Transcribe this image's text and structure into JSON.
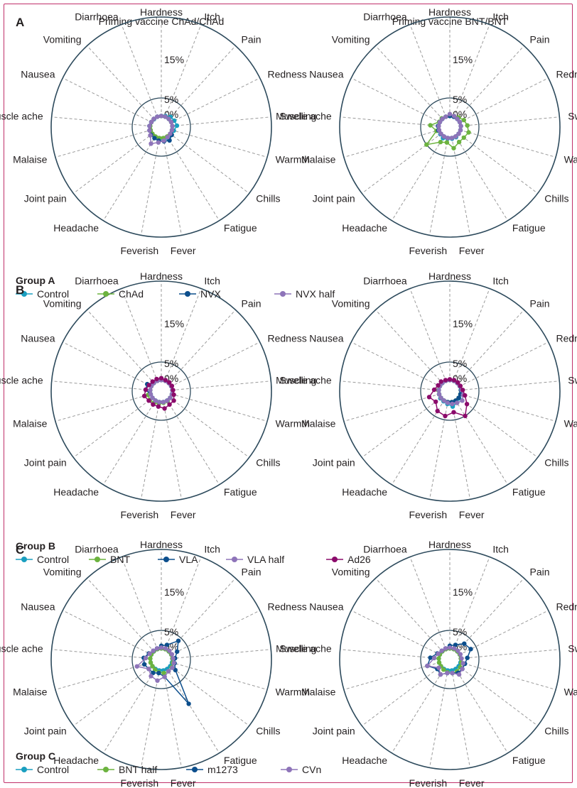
{
  "panels": [
    {
      "letter": "A",
      "group_label": "Group A",
      "legend": [
        {
          "name": "Control",
          "color": "#1a9fc0"
        },
        {
          "name": "ChAd",
          "color": "#6cb33f"
        },
        {
          "name": "NVX",
          "color": "#0c4e8c"
        },
        {
          "name": "NVX half",
          "color": "#8e74b9"
        }
      ]
    },
    {
      "letter": "B",
      "group_label": "Group B",
      "legend": [
        {
          "name": "Control",
          "color": "#1a9fc0"
        },
        {
          "name": "BNT",
          "color": "#6cb33f"
        },
        {
          "name": "VLA",
          "color": "#0c4e8c"
        },
        {
          "name": "VLA half",
          "color": "#8e74b9"
        },
        {
          "name": "Ad26",
          "color": "#8b0b6b"
        }
      ]
    },
    {
      "letter": "C",
      "group_label": "Group C",
      "legend": [
        {
          "name": "Control",
          "color": "#1a9fc0"
        },
        {
          "name": "BNT half",
          "color": "#6cb33f"
        },
        {
          "name": "m1273",
          "color": "#0c4e8c"
        },
        {
          "name": "CVn",
          "color": "#8e74b9"
        }
      ]
    }
  ],
  "chart_data": [
    {
      "type": "radar",
      "panel": "A",
      "title": "Priming vaccine ChAd/ChAd",
      "categories": [
        "Hardness",
        "Itch",
        "Pain",
        "Redness",
        "Swelling",
        "Warmth",
        "Chills",
        "Fatigue",
        "Fever",
        "Feverish",
        "Headache",
        "Joint pain",
        "Malaise",
        "Muscle ache",
        "Nausea",
        "Vomiting",
        "Diarrhoea"
      ],
      "tick_labels": [
        "0%",
        "5%",
        "15%"
      ],
      "series": [
        {
          "name": "Control",
          "color": "#1a9fc0",
          "values": [
            0.3,
            0.5,
            1.0,
            1.2,
            1.5,
            0.8,
            0.8,
            1.0,
            0.8,
            0.5,
            0.5,
            0.5,
            0.5,
            0.5,
            0.3,
            0.2,
            0.3
          ]
        },
        {
          "name": "ChAd",
          "color": "#6cb33f",
          "values": [
            0.3,
            0.3,
            0.3,
            0.3,
            0.3,
            0.3,
            0.3,
            0.3,
            0.3,
            0.3,
            0.3,
            0.3,
            0.3,
            0.3,
            0.3,
            0.3,
            0.3
          ]
        },
        {
          "name": "NVX",
          "color": "#0c4e8c",
          "values": [
            0.3,
            0.3,
            0.3,
            0.3,
            0.3,
            0.3,
            0.8,
            1.5,
            1.2,
            1.0,
            0.8,
            0.8,
            0.6,
            0.5,
            0.3,
            0.3,
            0.3
          ]
        },
        {
          "name": "NVX half",
          "color": "#8e74b9",
          "values": [
            0.3,
            0.3,
            0.3,
            0.3,
            0.3,
            0.3,
            0.3,
            0.5,
            1.0,
            1.5,
            2.5,
            1.0,
            0.6,
            0.5,
            0.3,
            0.3,
            0.3
          ]
        }
      ]
    },
    {
      "type": "radar",
      "panel": "A",
      "title": "Priming vaccine BNT/BNT",
      "categories": [
        "Hardness",
        "Itch",
        "Pain",
        "Redness",
        "Swelling",
        "Warmth",
        "Chills",
        "Fatigue",
        "Fever",
        "Feverish",
        "Headache",
        "Joint pain",
        "Malaise",
        "Muscle ache",
        "Nausea",
        "Vomiting",
        "Diarrhoea"
      ],
      "tick_labels": [
        "0%",
        "5%",
        "15%"
      ],
      "series": [
        {
          "name": "Control",
          "color": "#1a9fc0",
          "values": [
            0.3,
            0.3,
            0.3,
            0.3,
            0.3,
            0.3,
            0.3,
            0.5,
            0.5,
            0.5,
            0.8,
            0.5,
            0.5,
            0.5,
            0.3,
            0.3,
            0.3
          ]
        },
        {
          "name": "ChAd",
          "color": "#6cb33f",
          "values": [
            0.5,
            0.5,
            0.8,
            1.5,
            2.0,
            2.5,
            2.0,
            2.0,
            3.0,
            1.5,
            2.0,
            5.0,
            1.0,
            2.5,
            0.5,
            0.5,
            0.3
          ]
        },
        {
          "name": "NVX",
          "color": "#0c4e8c",
          "values": [
            0.3,
            0.3,
            0.3,
            0.3,
            0.3,
            0.3,
            0.3,
            0.3,
            0.3,
            0.3,
            0.3,
            0.3,
            0.5,
            0.5,
            0.3,
            0.3,
            0.3
          ]
        },
        {
          "name": "NVX half",
          "color": "#8e74b9",
          "values": [
            0.8,
            0.5,
            0.3,
            0.3,
            0.3,
            0.3,
            0.3,
            0.3,
            0.3,
            0.3,
            0.3,
            0.3,
            0.3,
            0.3,
            0.3,
            0.3,
            0.3
          ]
        }
      ]
    },
    {
      "type": "radar",
      "panel": "B",
      "title": "",
      "categories": [
        "Hardness",
        "Itch",
        "Pain",
        "Redness",
        "Swelling",
        "Warmth",
        "Chills",
        "Fatigue",
        "Fever",
        "Feverish",
        "Headache",
        "Joint pain",
        "Malaise",
        "Muscle ache",
        "Nausea",
        "Vomiting",
        "Diarrhoea"
      ],
      "tick_labels": [
        "0%",
        "5%",
        "15%"
      ],
      "series": [
        {
          "name": "Control",
          "color": "#1a9fc0",
          "values": [
            0.3,
            0.3,
            0.3,
            0.3,
            0.3,
            0.3,
            0.3,
            0.3,
            0.3,
            0.3,
            0.3,
            0.3,
            0.3,
            0.3,
            0.3,
            0.3,
            0.3
          ]
        },
        {
          "name": "BNT",
          "color": "#6cb33f",
          "values": [
            0.3,
            0.3,
            0.3,
            0.3,
            0.3,
            0.3,
            0.3,
            0.5,
            0.5,
            0.8,
            1.0,
            1.2,
            1.0,
            0.3,
            0.3,
            0.3,
            0.3
          ]
        },
        {
          "name": "VLA",
          "color": "#0c4e8c",
          "values": [
            0.5,
            0.3,
            0.3,
            0.3,
            0.3,
            0.3,
            0.3,
            0.3,
            0.3,
            0.3,
            0.3,
            0.3,
            0.3,
            1.5,
            1.5,
            0.3,
            0.3
          ]
        },
        {
          "name": "VLA half",
          "color": "#8e74b9",
          "values": [
            0.3,
            0.3,
            0.3,
            0.3,
            0.3,
            0.3,
            0.3,
            0.3,
            0.3,
            0.3,
            0.3,
            0.3,
            0.3,
            0.3,
            0.3,
            0.3,
            0.3
          ]
        },
        {
          "name": "Ad26",
          "color": "#8b0b6b",
          "values": [
            0.8,
            0.5,
            0.5,
            0.5,
            0.5,
            0.8,
            1.5,
            1.5,
            2.0,
            1.5,
            1.5,
            1.5,
            2.0,
            1.5,
            1.0,
            0.8,
            0.8
          ]
        }
      ]
    },
    {
      "type": "radar",
      "panel": "B",
      "title": "",
      "categories": [
        "Hardness",
        "Itch",
        "Pain",
        "Redness",
        "Swelling",
        "Warmth",
        "Chills",
        "Fatigue",
        "Fever",
        "Feverish",
        "Headache",
        "Joint pain",
        "Malaise",
        "Muscle ache",
        "Nausea",
        "Vomiting",
        "Diarrhoea"
      ],
      "tick_labels": [
        "0%",
        "5%",
        "15%"
      ],
      "series": [
        {
          "name": "Control",
          "color": "#1a9fc0",
          "values": [
            0.3,
            0.3,
            0.3,
            0.3,
            0.3,
            0.3,
            0.5,
            1.0,
            1.5,
            0.8,
            0.5,
            0.5,
            0.3,
            0.3,
            0.3,
            0.3,
            0.3
          ]
        },
        {
          "name": "BNT",
          "color": "#6cb33f",
          "values": [
            0.3,
            0.3,
            0.3,
            0.3,
            0.3,
            0.3,
            0.3,
            0.3,
            0.3,
            0.3,
            0.3,
            0.3,
            0.3,
            0.5,
            0.3,
            0.3,
            0.3
          ]
        },
        {
          "name": "VLA",
          "color": "#0c4e8c",
          "values": [
            0.3,
            0.3,
            0.3,
            0.3,
            0.3,
            0.3,
            0.3,
            0.3,
            0.3,
            0.3,
            0.3,
            0.3,
            0.3,
            0.3,
            0.3,
            0.3,
            0.3
          ]
        },
        {
          "name": "VLA half",
          "color": "#8e74b9",
          "values": [
            0.3,
            0.3,
            0.3,
            0.3,
            0.5,
            1.0,
            1.5,
            1.0,
            0.8,
            0.5,
            0.3,
            0.3,
            0.3,
            0.3,
            0.3,
            0.3,
            0.3
          ]
        },
        {
          "name": "Ad26",
          "color": "#8b0b6b",
          "values": [
            0.5,
            0.5,
            0.5,
            0.5,
            0.8,
            1.5,
            3.0,
            5.0,
            3.0,
            4.0,
            3.5,
            2.0,
            3.0,
            1.5,
            0.8,
            0.8,
            0.5
          ]
        }
      ]
    },
    {
      "type": "radar",
      "panel": "C",
      "title": "",
      "categories": [
        "Hardness",
        "Itch",
        "Pain",
        "Redness",
        "Swelling",
        "Warmth",
        "Chills",
        "Fatigue",
        "Fever",
        "Feverish",
        "Headache",
        "Joint pain",
        "Malaise",
        "Muscle ache",
        "Nausea",
        "Vomiting",
        "Diarrhoea"
      ],
      "tick_labels": [
        "0%",
        "5%",
        "15%"
      ],
      "series": [
        {
          "name": "Control",
          "color": "#1a9fc0",
          "values": [
            0.3,
            0.3,
            0.3,
            0.3,
            0.3,
            0.3,
            0.3,
            0.3,
            0.3,
            0.3,
            0.3,
            0.3,
            0.3,
            0.3,
            0.3,
            0.3,
            0.3
          ]
        },
        {
          "name": "BNT half",
          "color": "#6cb33f",
          "values": [
            0.3,
            0.3,
            0.3,
            0.3,
            0.3,
            0.5,
            0.8,
            1.0,
            1.0,
            0.8,
            0.5,
            0.3,
            0.3,
            0.3,
            0.3,
            0.3,
            0.3
          ]
        },
        {
          "name": "m1273",
          "color": "#0c4e8c",
          "values": [
            1.0,
            1.5,
            4.0,
            2.0,
            1.0,
            1.0,
            2.0,
            11.0,
            2.0,
            1.0,
            1.5,
            1.5,
            2.0,
            2.0,
            1.0,
            0.5,
            0.5
          ]
        },
        {
          "name": "CVn",
          "color": "#8e74b9",
          "values": [
            0.5,
            0.5,
            0.5,
            0.5,
            0.5,
            0.8,
            1.0,
            1.0,
            2.0,
            3.0,
            2.5,
            1.5,
            4.0,
            1.5,
            0.8,
            0.5,
            0.5
          ]
        }
      ]
    },
    {
      "type": "radar",
      "panel": "C",
      "title": "",
      "categories": [
        "Hardness",
        "Itch",
        "Pain",
        "Redness",
        "Swelling",
        "Warmth",
        "Chills",
        "Fatigue",
        "Fever",
        "Feverish",
        "Headache",
        "Joint pain",
        "Malaise",
        "Muscle ache",
        "Nausea",
        "Vomiting",
        "Diarrhoea"
      ],
      "tick_labels": [
        "0%",
        "5%",
        "15%"
      ],
      "series": [
        {
          "name": "Control",
          "color": "#1a9fc0",
          "values": [
            0.3,
            0.3,
            0.3,
            0.3,
            0.3,
            0.3,
            0.3,
            0.3,
            0.3,
            0.3,
            0.3,
            0.3,
            0.3,
            0.3,
            0.3,
            0.3,
            0.3
          ]
        },
        {
          "name": "BNT half",
          "color": "#6cb33f",
          "values": [
            0.3,
            0.3,
            0.3,
            0.3,
            0.3,
            0.5,
            0.8,
            1.0,
            1.0,
            0.8,
            0.5,
            0.3,
            0.3,
            0.3,
            0.3,
            0.3,
            0.3
          ]
        },
        {
          "name": "m1273",
          "color": "#0c4e8c",
          "values": [
            1.0,
            1.5,
            3.0,
            3.5,
            2.0,
            1.5,
            1.5,
            1.5,
            1.0,
            1.0,
            2.0,
            1.5,
            3.5,
            2.5,
            1.0,
            0.5,
            0.5
          ]
        },
        {
          "name": "CVn",
          "color": "#8e74b9",
          "values": [
            0.5,
            0.5,
            0.5,
            0.5,
            0.5,
            1.0,
            1.5,
            2.0,
            1.0,
            1.0,
            2.0,
            1.0,
            3.5,
            1.5,
            0.8,
            0.5,
            0.5
          ]
        }
      ]
    }
  ]
}
